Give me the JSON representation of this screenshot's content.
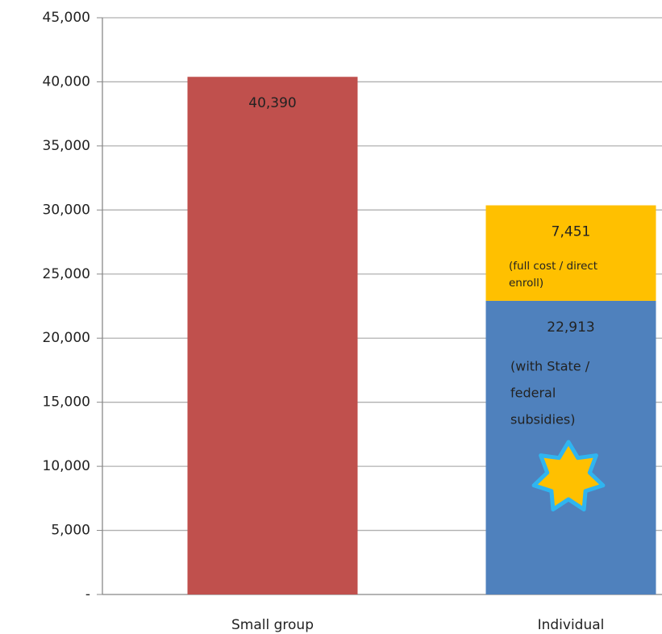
{
  "chart_data": {
    "type": "stacked_bar",
    "categories": [
      "Small group",
      "Individual"
    ],
    "series": [
      {
        "colors": [
          "#c0504d",
          "#4f81bd"
        ],
        "values": [
          40390,
          22913
        ],
        "value_labels": [
          "40,390",
          "22,913"
        ]
      },
      {
        "color": "#ffc000",
        "values": [
          null,
          7451
        ],
        "value_labels": [
          null,
          "7,451"
        ]
      }
    ],
    "annotations": [
      {
        "lines": [
          "(full cost / direct",
          "enroll)"
        ]
      },
      {
        "lines": [
          "(with State /",
          "federal",
          "subsidies)"
        ]
      }
    ],
    "ylim": [
      0,
      45000
    ],
    "yticks": [
      {
        "value": 0,
        "label": "-"
      },
      {
        "value": 5000,
        "label": "5,000"
      },
      {
        "value": 10000,
        "label": "10,000"
      },
      {
        "value": 15000,
        "label": "15,000"
      },
      {
        "value": 20000,
        "label": "20,000"
      },
      {
        "value": 25000,
        "label": "25,000"
      },
      {
        "value": 30000,
        "label": "30,000"
      },
      {
        "value": 35000,
        "label": "35,000"
      },
      {
        "value": 40000,
        "label": "40,000"
      },
      {
        "value": 45000,
        "label": "45,000"
      }
    ],
    "grid": true
  }
}
